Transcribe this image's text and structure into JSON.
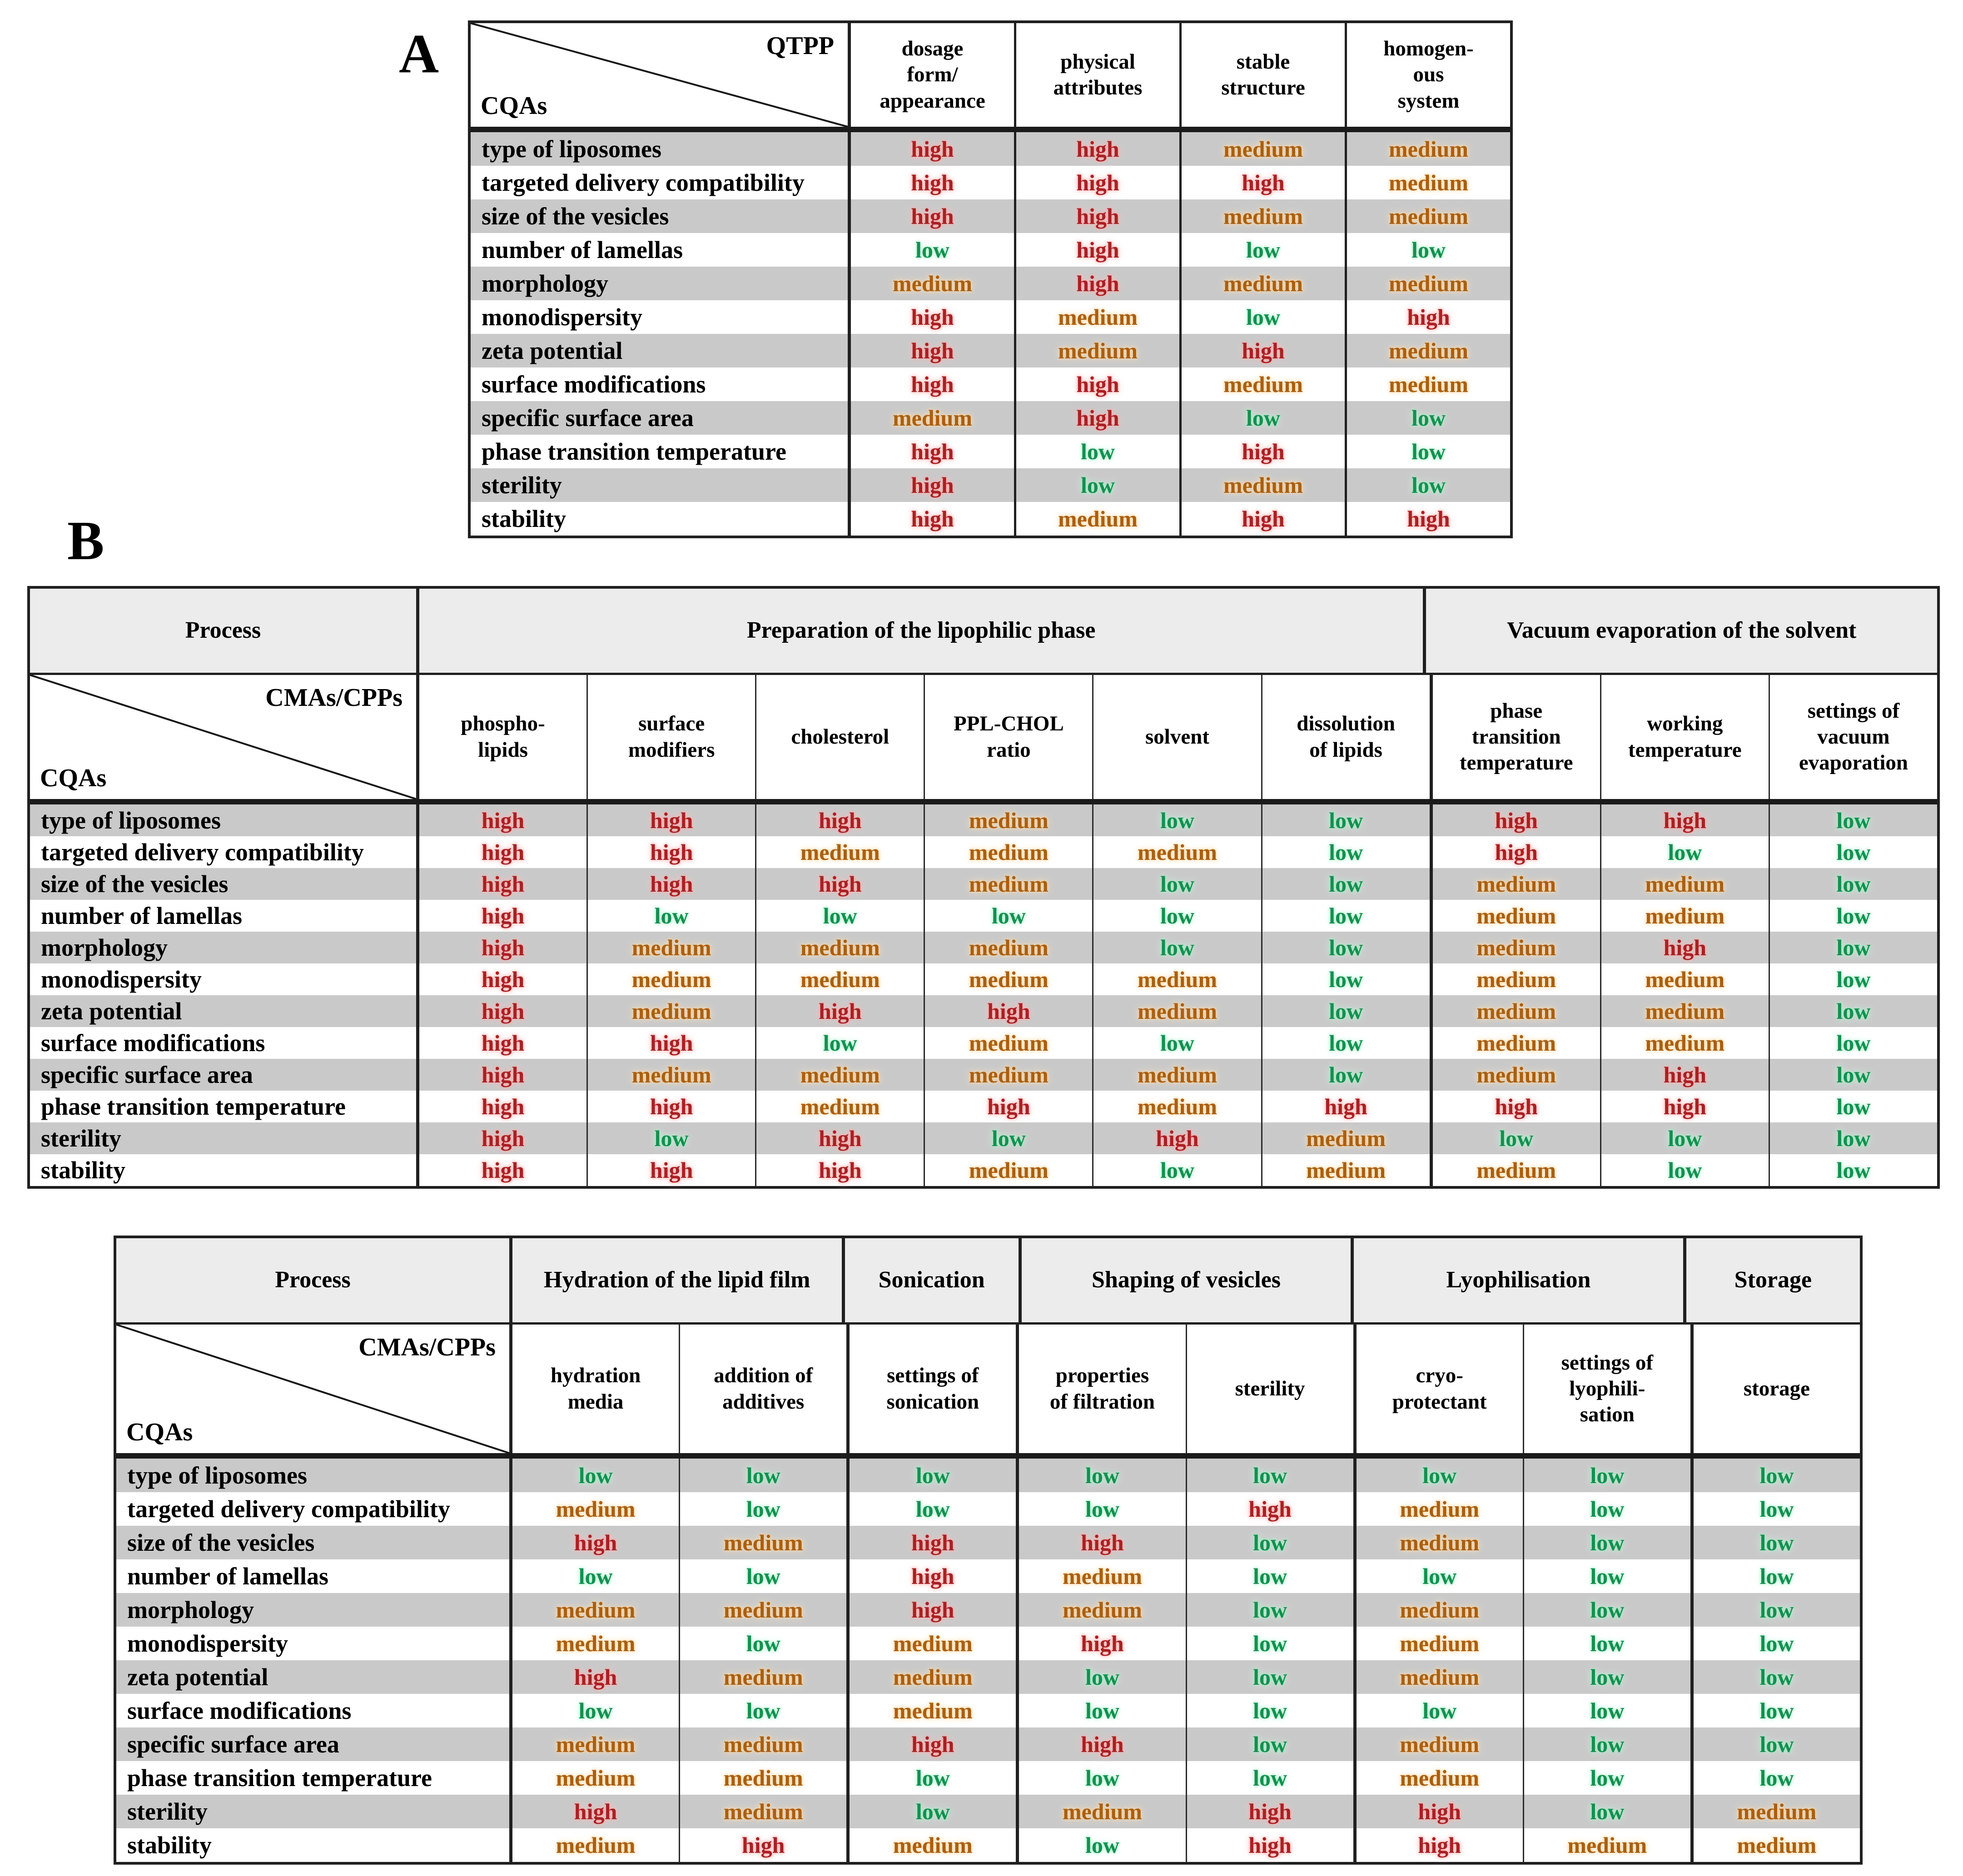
{
  "panel_a_label": "A",
  "panel_b_label": "B",
  "value_colors": {
    "high": "#a92023",
    "medium": "#aa5f10",
    "low": "#13904f"
  },
  "table_a": {
    "corner_top": "QTPP",
    "corner_bottom": "CQAs",
    "columns": [
      "dosage\nform/\nappearance",
      "physical\nattributes",
      "stable\nstructure",
      "homogen-\nous\nsystem"
    ],
    "rows": [
      {
        "label": "type of liposomes",
        "values": [
          "high",
          "high",
          "medium",
          "medium"
        ]
      },
      {
        "label": "targeted delivery compatibility",
        "values": [
          "high",
          "high",
          "high",
          "medium"
        ]
      },
      {
        "label": "size of the vesicles",
        "values": [
          "high",
          "high",
          "medium",
          "medium"
        ]
      },
      {
        "label": "number of lamellas",
        "values": [
          "low",
          "high",
          "low",
          "low"
        ]
      },
      {
        "label": "morphology",
        "values": [
          "medium",
          "high",
          "medium",
          "medium"
        ]
      },
      {
        "label": "monodispersity",
        "values": [
          "high",
          "medium",
          "low",
          "high"
        ]
      },
      {
        "label": "zeta potential",
        "values": [
          "high",
          "medium",
          "high",
          "medium"
        ]
      },
      {
        "label": "surface modifications",
        "values": [
          "high",
          "high",
          "medium",
          "medium"
        ]
      },
      {
        "label": "specific surface area",
        "values": [
          "medium",
          "high",
          "low",
          "low"
        ]
      },
      {
        "label": "phase transition temperature",
        "values": [
          "high",
          "low",
          "high",
          "low"
        ]
      },
      {
        "label": "sterility",
        "values": [
          "high",
          "low",
          "medium",
          "low"
        ]
      },
      {
        "label": "stability",
        "values": [
          "high",
          "medium",
          "high",
          "high"
        ]
      }
    ]
  },
  "table_b1": {
    "process_label": "Process",
    "corner_top": "CMAs/CPPs",
    "corner_bottom": "CQAs",
    "groups": [
      {
        "label": "Preparation of the lipophilic phase",
        "span": 6
      },
      {
        "label": "Vacuum evaporation of the solvent",
        "span": 3
      }
    ],
    "columns": [
      "phospho-\nlipids",
      "surface\nmodifiers",
      "cholesterol",
      "PPL-CHOL\nratio",
      "solvent",
      "dissolution\nof lipids",
      "phase\ntransition\ntemperature",
      "working\ntemperature",
      "settings of\nvacuum\nevaporation"
    ],
    "rows": [
      {
        "label": "type of liposomes",
        "values": [
          "high",
          "high",
          "high",
          "medium",
          "low",
          "low",
          "high",
          "high",
          "low"
        ]
      },
      {
        "label": "targeted delivery compatibility",
        "values": [
          "high",
          "high",
          "medium",
          "medium",
          "medium",
          "low",
          "high",
          "low",
          "low"
        ]
      },
      {
        "label": "size of the vesicles",
        "values": [
          "high",
          "high",
          "high",
          "medium",
          "low",
          "low",
          "medium",
          "medium",
          "low"
        ]
      },
      {
        "label": "number of lamellas",
        "values": [
          "high",
          "low",
          "low",
          "low",
          "low",
          "low",
          "medium",
          "medium",
          "low"
        ]
      },
      {
        "label": "morphology",
        "values": [
          "high",
          "medium",
          "medium",
          "medium",
          "low",
          "low",
          "medium",
          "high",
          "low"
        ]
      },
      {
        "label": "monodispersity",
        "values": [
          "high",
          "medium",
          "medium",
          "medium",
          "medium",
          "low",
          "medium",
          "medium",
          "low"
        ]
      },
      {
        "label": "zeta potential",
        "values": [
          "high",
          "medium",
          "high",
          "high",
          "medium",
          "low",
          "medium",
          "medium",
          "low"
        ]
      },
      {
        "label": "surface modifications",
        "values": [
          "high",
          "high",
          "low",
          "medium",
          "low",
          "low",
          "medium",
          "medium",
          "low"
        ]
      },
      {
        "label": "specific surface area",
        "values": [
          "high",
          "medium",
          "medium",
          "medium",
          "medium",
          "low",
          "medium",
          "high",
          "low"
        ]
      },
      {
        "label": "phase transition temperature",
        "values": [
          "high",
          "high",
          "medium",
          "high",
          "medium",
          "high",
          "high",
          "high",
          "low"
        ]
      },
      {
        "label": "sterility",
        "values": [
          "high",
          "low",
          "high",
          "low",
          "high",
          "medium",
          "low",
          "low",
          "low"
        ]
      },
      {
        "label": "stability",
        "values": [
          "high",
          "high",
          "high",
          "medium",
          "low",
          "medium",
          "medium",
          "low",
          "low"
        ]
      }
    ]
  },
  "table_b2": {
    "process_label": "Process",
    "corner_top": "CMAs/CPPs",
    "corner_bottom": "CQAs",
    "groups": [
      {
        "label": "Hydration of the lipid film",
        "span": 2
      },
      {
        "label": "Sonication",
        "span": 1
      },
      {
        "label": "Shaping of vesicles",
        "span": 2
      },
      {
        "label": "Lyophilisation",
        "span": 2
      },
      {
        "label": "Storage",
        "span": 1
      }
    ],
    "columns": [
      "hydration\nmedia",
      "addition of\nadditives",
      "settings of\nsonication",
      "properties\nof filtration",
      "sterility",
      "cryo-\nprotectant",
      "settings of\nlyophili-\nsation",
      "storage"
    ],
    "rows": [
      {
        "label": "type of liposomes",
        "values": [
          "low",
          "low",
          "low",
          "low",
          "low",
          "low",
          "low",
          "low"
        ]
      },
      {
        "label": "targeted delivery compatibility",
        "values": [
          "medium",
          "low",
          "low",
          "low",
          "high",
          "medium",
          "low",
          "low"
        ]
      },
      {
        "label": "size of the vesicles",
        "values": [
          "high",
          "medium",
          "high",
          "high",
          "low",
          "medium",
          "low",
          "low"
        ]
      },
      {
        "label": "number of lamellas",
        "values": [
          "low",
          "low",
          "high",
          "medium",
          "low",
          "low",
          "low",
          "low"
        ]
      },
      {
        "label": "morphology",
        "values": [
          "medium",
          "medium",
          "high",
          "medium",
          "low",
          "medium",
          "low",
          "low"
        ]
      },
      {
        "label": "monodispersity",
        "values": [
          "medium",
          "low",
          "medium",
          "high",
          "low",
          "medium",
          "low",
          "low"
        ]
      },
      {
        "label": "zeta potential",
        "values": [
          "high",
          "medium",
          "medium",
          "low",
          "low",
          "medium",
          "low",
          "low"
        ]
      },
      {
        "label": "surface modifications",
        "values": [
          "low",
          "low",
          "medium",
          "low",
          "low",
          "low",
          "low",
          "low"
        ]
      },
      {
        "label": "specific surface area",
        "values": [
          "medium",
          "medium",
          "high",
          "high",
          "low",
          "medium",
          "low",
          "low"
        ]
      },
      {
        "label": "phase transition temperature",
        "values": [
          "medium",
          "medium",
          "low",
          "low",
          "low",
          "medium",
          "low",
          "low"
        ]
      },
      {
        "label": "sterility",
        "values": [
          "high",
          "medium",
          "low",
          "medium",
          "high",
          "high",
          "low",
          "medium"
        ]
      },
      {
        "label": "stability",
        "values": [
          "medium",
          "high",
          "medium",
          "low",
          "high",
          "high",
          "medium",
          "medium"
        ]
      }
    ]
  }
}
